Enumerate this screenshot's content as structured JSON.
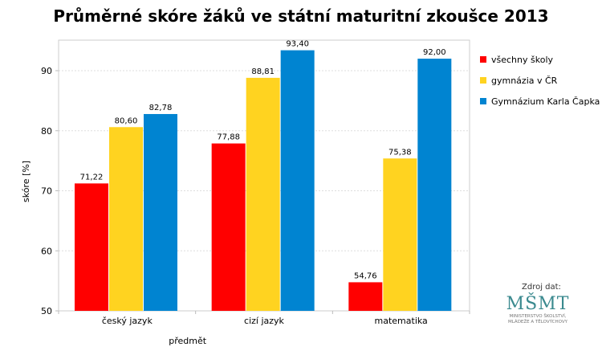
{
  "chart_data": {
    "type": "bar",
    "title": "Průměrné skóre žáků ve státní maturitní zkoušce 2013",
    "xlabel": "předmět",
    "ylabel": "skóre [%]",
    "ylim": [
      50,
      95
    ],
    "yticks": [
      "50",
      "60",
      "70",
      "80",
      "90"
    ],
    "grid": true,
    "legend": "right",
    "categories": [
      "český jazyk",
      "cizí jazyk",
      "matematika"
    ],
    "series": [
      {
        "name": "všechny školy",
        "color": "#ff0000",
        "values": [
          71.22,
          77.88,
          54.76
        ],
        "labels": [
          "71,22",
          "77,88",
          "54,76"
        ]
      },
      {
        "name": "gymnázia v ČR",
        "color": "#ffd320",
        "values": [
          80.6,
          88.81,
          75.38
        ],
        "labels": [
          "80,60",
          "88,81",
          "75,38"
        ]
      },
      {
        "name": "Gymnázium Karla Čapka",
        "color": "#0084d1",
        "values": [
          82.78,
          93.4,
          92.0
        ],
        "labels": [
          "82,78",
          "93,40",
          "92,00"
        ]
      }
    ]
  },
  "source": {
    "label": "Zdroj dat:",
    "logo_text": "MŠMT",
    "logo_caption_1": "MINISTERSTVO ŠKOLSTVÍ,",
    "logo_caption_2": "MLÁDEŽE A TĚLOVÝCHOVY"
  }
}
